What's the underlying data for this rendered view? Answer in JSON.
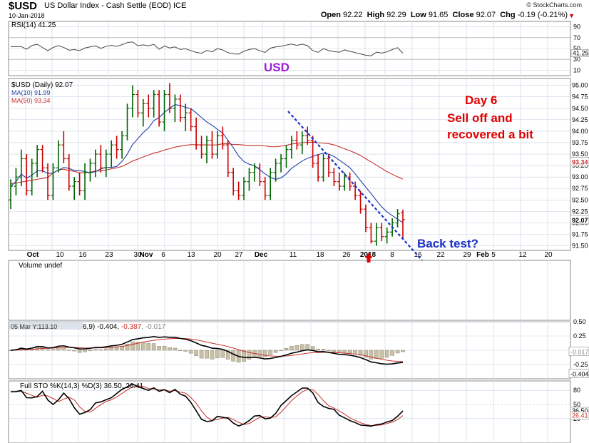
{
  "header": {
    "symbol": "$USD",
    "name": "US Dollar Index - Cash Settle (EOD)",
    "exchange": "ICE",
    "date": "10-Jan-2018",
    "copyright": "© StockCharts.com",
    "open_label": "Open",
    "open": "92.22",
    "high_label": "High",
    "high": "92.29",
    "low_label": "Low",
    "low": "91.65",
    "close_label": "Close",
    "close": "92.07",
    "chg_label": "Chg",
    "chg": "-0.19 (-0.21%)"
  },
  "rsi_panel": {
    "label": "RSI(14) 41.25",
    "value": "41.25",
    "ticks": [
      "90",
      "70",
      "50",
      "30",
      "10"
    ]
  },
  "price_panel": {
    "legend_symbol": "$USD (Daily) 92.07",
    "legend_ma10": "MA(10) 91.99",
    "legend_ma50": "MA(50) 93.34",
    "ticks": [
      "95.00",
      "94.75",
      "94.50",
      "94.25",
      "94.00",
      "93.75",
      "93.50",
      "93.25",
      "93.00",
      "92.75",
      "92.50",
      "92.25",
      "92.00",
      "91.75",
      "91.50"
    ],
    "tag_ma50": "93.34",
    "tag_last": "92.07"
  },
  "x_axis": {
    "labels": [
      "Oct",
      "10",
      "16",
      "23",
      "30",
      "Nov",
      "6",
      "13",
      "20",
      "27",
      "Dec",
      "11",
      "18",
      "26",
      "2018",
      "8",
      "16",
      "22",
      "29",
      "Feb",
      "5",
      "12",
      "20"
    ]
  },
  "volume_panel": {
    "label": "Volume undef"
  },
  "macd_panel": {
    "label_prefix": "05 Mar Y:113.10",
    "label_rest": "6,9) -0.404, ",
    "value_signal": "-0.387",
    "value_hist": "-0.017",
    "ticks": [
      "0.50",
      "0.25",
      "0.00",
      "-0.25"
    ],
    "tag_hist": "-0.017",
    "tag_macd": "-0.404"
  },
  "sto_panel": {
    "label": "Full STO %K(14,3) %D(3) 36.50, 26.41",
    "ticks": [
      "80",
      "50",
      "20"
    ],
    "tag_k": "36.50",
    "tag_d": "26.41"
  },
  "annotations": {
    "usd_label": "USD",
    "day6": "Day 6",
    "selloff_1": "Sell off and",
    "selloff_2": "recovered a bit",
    "back_test": "Back test?"
  },
  "colors": {
    "up": "#006400",
    "down": "#cc0000",
    "ma10": "#1f3ea8",
    "ma50": "#c8302a",
    "annotation_red": "#e00000",
    "annotation_blue": "#1a2fc8",
    "annotation_purple": "#9b1fd6",
    "grid": "#c7d3e3"
  },
  "chart_data": {
    "type": "ohlc",
    "title": "$USD US Dollar Index - Cash Settle (EOD) ICE",
    "ylim": [
      91.4,
      95.15
    ],
    "bars": [
      {
        "o": 92.5,
        "h": 92.95,
        "l": 92.3,
        "c": 92.8
      },
      {
        "o": 92.8,
        "h": 93.2,
        "l": 92.6,
        "c": 93.0
      },
      {
        "o": 93.0,
        "h": 93.6,
        "l": 92.8,
        "c": 93.4
      },
      {
        "o": 93.4,
        "h": 93.5,
        "l": 92.6,
        "c": 92.7
      },
      {
        "o": 92.7,
        "h": 93.4,
        "l": 92.6,
        "c": 93.3
      },
      {
        "o": 93.3,
        "h": 93.7,
        "l": 93.0,
        "c": 93.6
      },
      {
        "o": 93.6,
        "h": 93.7,
        "l": 93.1,
        "c": 93.2
      },
      {
        "o": 93.2,
        "h": 93.3,
        "l": 92.5,
        "c": 92.6
      },
      {
        "o": 92.6,
        "h": 93.3,
        "l": 92.5,
        "c": 93.2
      },
      {
        "o": 93.2,
        "h": 93.8,
        "l": 93.1,
        "c": 93.7
      },
      {
        "o": 93.7,
        "h": 94.0,
        "l": 93.3,
        "c": 93.4
      },
      {
        "o": 93.4,
        "h": 93.5,
        "l": 92.7,
        "c": 92.8
      },
      {
        "o": 92.8,
        "h": 93.0,
        "l": 92.5,
        "c": 92.9
      },
      {
        "o": 92.9,
        "h": 93.1,
        "l": 92.6,
        "c": 92.7
      },
      {
        "o": 92.7,
        "h": 93.3,
        "l": 92.5,
        "c": 93.1
      },
      {
        "o": 93.1,
        "h": 93.4,
        "l": 92.9,
        "c": 93.3
      },
      {
        "o": 93.3,
        "h": 93.6,
        "l": 93.0,
        "c": 93.5
      },
      {
        "o": 93.5,
        "h": 93.7,
        "l": 93.1,
        "c": 93.2
      },
      {
        "o": 93.2,
        "h": 93.6,
        "l": 93.0,
        "c": 93.5
      },
      {
        "o": 93.5,
        "h": 93.8,
        "l": 93.2,
        "c": 93.7
      },
      {
        "o": 93.7,
        "h": 93.9,
        "l": 93.4,
        "c": 93.6
      },
      {
        "o": 93.6,
        "h": 94.0,
        "l": 93.4,
        "c": 93.9
      },
      {
        "o": 93.9,
        "h": 94.6,
        "l": 93.8,
        "c": 94.5
      },
      {
        "o": 94.5,
        "h": 95.0,
        "l": 94.3,
        "c": 94.8
      },
      {
        "o": 94.8,
        "h": 94.9,
        "l": 94.3,
        "c": 94.4
      },
      {
        "o": 94.4,
        "h": 94.7,
        "l": 94.1,
        "c": 94.6
      },
      {
        "o": 94.6,
        "h": 94.8,
        "l": 94.3,
        "c": 94.5
      },
      {
        "o": 94.5,
        "h": 94.9,
        "l": 94.3,
        "c": 94.8
      },
      {
        "o": 94.8,
        "h": 94.9,
        "l": 94.1,
        "c": 94.2
      },
      {
        "o": 94.2,
        "h": 94.9,
        "l": 94.0,
        "c": 94.8
      },
      {
        "o": 94.8,
        "h": 95.05,
        "l": 94.4,
        "c": 94.5
      },
      {
        "o": 94.5,
        "h": 94.8,
        "l": 94.2,
        "c": 94.7
      },
      {
        "o": 94.7,
        "h": 94.8,
        "l": 94.2,
        "c": 94.3
      },
      {
        "o": 94.3,
        "h": 94.6,
        "l": 94.0,
        "c": 94.4
      },
      {
        "o": 94.4,
        "h": 94.5,
        "l": 94.0,
        "c": 94.1
      },
      {
        "o": 94.1,
        "h": 94.3,
        "l": 93.6,
        "c": 93.7
      },
      {
        "o": 93.7,
        "h": 93.9,
        "l": 93.4,
        "c": 93.5
      },
      {
        "o": 93.5,
        "h": 93.9,
        "l": 93.3,
        "c": 93.8
      },
      {
        "o": 93.8,
        "h": 94.0,
        "l": 93.4,
        "c": 93.5
      },
      {
        "o": 93.5,
        "h": 94.0,
        "l": 93.4,
        "c": 93.9
      },
      {
        "o": 93.9,
        "h": 94.1,
        "l": 93.6,
        "c": 93.7
      },
      {
        "o": 93.7,
        "h": 93.8,
        "l": 93.0,
        "c": 93.1
      },
      {
        "o": 93.1,
        "h": 93.2,
        "l": 92.6,
        "c": 92.7
      },
      {
        "o": 92.7,
        "h": 92.9,
        "l": 92.5,
        "c": 92.6
      },
      {
        "o": 92.6,
        "h": 93.0,
        "l": 92.5,
        "c": 92.9
      },
      {
        "o": 92.9,
        "h": 93.2,
        "l": 92.7,
        "c": 93.1
      },
      {
        "o": 93.1,
        "h": 93.3,
        "l": 92.9,
        "c": 93.2
      },
      {
        "o": 93.2,
        "h": 93.3,
        "l": 92.8,
        "c": 92.9
      },
      {
        "o": 92.9,
        "h": 93.0,
        "l": 92.5,
        "c": 92.6
      },
      {
        "o": 92.6,
        "h": 93.2,
        "l": 92.5,
        "c": 93.1
      },
      {
        "o": 93.1,
        "h": 93.4,
        "l": 92.9,
        "c": 93.3
      },
      {
        "o": 93.3,
        "h": 93.5,
        "l": 93.1,
        "c": 93.4
      },
      {
        "o": 93.4,
        "h": 93.7,
        "l": 93.2,
        "c": 93.6
      },
      {
        "o": 93.6,
        "h": 93.9,
        "l": 93.4,
        "c": 93.8
      },
      {
        "o": 93.8,
        "h": 94.0,
        "l": 93.6,
        "c": 93.7
      },
      {
        "o": 93.7,
        "h": 94.0,
        "l": 93.5,
        "c": 93.9
      },
      {
        "o": 93.9,
        "h": 94.1,
        "l": 93.7,
        "c": 93.8
      },
      {
        "o": 93.8,
        "h": 93.9,
        "l": 93.2,
        "c": 93.3
      },
      {
        "o": 93.3,
        "h": 93.5,
        "l": 92.9,
        "c": 93.0
      },
      {
        "o": 93.0,
        "h": 93.5,
        "l": 92.9,
        "c": 93.4
      },
      {
        "o": 93.4,
        "h": 93.5,
        "l": 93.0,
        "c": 93.1
      },
      {
        "o": 93.1,
        "h": 93.2,
        "l": 92.8,
        "c": 92.9
      },
      {
        "o": 92.9,
        "h": 93.1,
        "l": 92.7,
        "c": 92.8
      },
      {
        "o": 92.8,
        "h": 93.1,
        "l": 92.7,
        "c": 93.0
      },
      {
        "o": 93.0,
        "h": 93.1,
        "l": 92.7,
        "c": 92.8
      },
      {
        "o": 92.8,
        "h": 92.9,
        "l": 92.5,
        "c": 92.6
      },
      {
        "o": 92.6,
        "h": 92.7,
        "l": 92.2,
        "c": 92.3
      },
      {
        "o": 92.3,
        "h": 92.4,
        "l": 91.8,
        "c": 91.9
      },
      {
        "o": 91.9,
        "h": 92.0,
        "l": 91.55,
        "c": 91.6
      },
      {
        "o": 91.6,
        "h": 92.0,
        "l": 91.5,
        "c": 91.9
      },
      {
        "o": 91.9,
        "h": 92.0,
        "l": 91.6,
        "c": 91.7
      },
      {
        "o": 91.7,
        "h": 91.9,
        "l": 91.55,
        "c": 91.8
      },
      {
        "o": 91.8,
        "h": 92.1,
        "l": 91.7,
        "c": 92.0
      },
      {
        "o": 92.0,
        "h": 92.3,
        "l": 91.9,
        "c": 92.2
      },
      {
        "o": 92.22,
        "h": 92.29,
        "l": 91.65,
        "c": 92.07
      }
    ],
    "ma10_last": 91.99,
    "ma50_last": 93.34,
    "rsi_last": 41.25,
    "macd": {
      "macd": -0.404,
      "signal": -0.387,
      "hist": -0.017
    },
    "stochastics": {
      "k": 36.5,
      "d": 26.41
    }
  }
}
